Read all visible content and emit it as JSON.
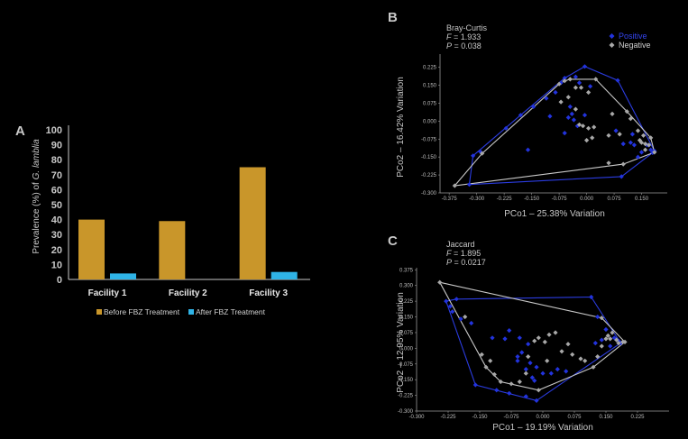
{
  "colors": {
    "background": "#000000",
    "before": "#c9962a",
    "after": "#2fb3e6",
    "positive": "#2233dd",
    "negative": "#a8a8a8",
    "text": "#c8c8c8"
  },
  "panels": {
    "a": {
      "letter": "A"
    },
    "b": {
      "letter": "B",
      "metric": "Bray-Curtis",
      "f_label": "F",
      "f_value": " = 1.933",
      "p_label": "P",
      "p_value": " = 0.038"
    },
    "c": {
      "letter": "C",
      "metric": "Jaccard",
      "f_label": "F",
      "f_value": " = 1.895",
      "p_label": "P",
      "p_value": " = 0.0217"
    }
  },
  "chart_data": [
    {
      "type": "bar",
      "id": "A",
      "categories": [
        "Facility 1",
        "Facility 2",
        "Facility 3"
      ],
      "series": [
        {
          "name": "Before FBZ Treatment",
          "values": [
            40,
            39,
            75
          ]
        },
        {
          "name": "After FBZ Treatment",
          "values": [
            4,
            0,
            5
          ]
        }
      ],
      "ylabel_prefix": "Prevalence (%) of ",
      "ylabel_italic": "G. lamblia",
      "ylim": [
        0,
        100
      ],
      "yticks": [
        0,
        10,
        20,
        30,
        40,
        50,
        60,
        70,
        80,
        90,
        100
      ],
      "legend_position": "bottom"
    },
    {
      "type": "scatter",
      "id": "B",
      "title": "Bray-Curtis",
      "xlabel": "PCo1 – 25.38% Variation",
      "ylabel": "PCo2 – 16.42% Variation",
      "xlim": [
        -0.4,
        0.22
      ],
      "ylim": [
        -0.3,
        0.28
      ],
      "xticks": [
        "-0.375",
        "-0.300",
        "-0.225",
        "-0.150",
        "-0.075",
        "0.000",
        "0.075",
        "0.150"
      ],
      "yticks": [
        "-0.300",
        "-0.225",
        "-0.150",
        "-0.075",
        "0.000",
        "0.075",
        "0.150",
        "0.225"
      ],
      "legend_position": "top-right",
      "series": [
        {
          "name": "Positive",
          "points": [
            [
              -0.31,
              -0.145
            ],
            [
              -0.29,
              -0.128
            ],
            [
              -0.22,
              -0.03
            ],
            [
              -0.18,
              0.025
            ],
            [
              -0.145,
              0.06
            ],
            [
              -0.11,
              0.095
            ],
            [
              -0.085,
              0.12
            ],
            [
              -0.07,
              0.16
            ],
            [
              -0.06,
              0.18
            ],
            [
              -0.03,
              0.185
            ],
            [
              -0.02,
              0.16
            ],
            [
              -0.005,
              0.228
            ],
            [
              0.01,
              0.145
            ],
            [
              -0.045,
              0.06
            ],
            [
              -0.04,
              0.03
            ],
            [
              -0.035,
              0.005
            ],
            [
              -0.025,
              -0.02
            ],
            [
              -0.05,
              0.015
            ],
            [
              -0.1,
              0.02
            ],
            [
              -0.06,
              -0.05
            ],
            [
              -0.16,
              -0.12
            ],
            [
              0.08,
              -0.04
            ],
            [
              0.085,
              0.17
            ],
            [
              0.1,
              -0.095
            ],
            [
              0.12,
              -0.09
            ],
            [
              0.125,
              -0.055
            ],
            [
              0.13,
              -0.1
            ],
            [
              0.14,
              -0.15
            ],
            [
              0.15,
              -0.13
            ],
            [
              0.165,
              -0.1
            ],
            [
              0.175,
              -0.12
            ],
            [
              0.18,
              -0.132
            ],
            [
              0.185,
              -0.125
            ],
            [
              0.095,
              -0.232
            ],
            [
              -0.32,
              -0.265
            ],
            [
              -0.005,
              0.025
            ]
          ]
        },
        {
          "name": "Negative",
          "points": [
            [
              -0.36,
              -0.27
            ],
            [
              -0.285,
              -0.135
            ],
            [
              -0.075,
              0.155
            ],
            [
              -0.06,
              0.168
            ],
            [
              -0.045,
              0.175
            ],
            [
              -0.03,
              0.14
            ],
            [
              -0.015,
              0.14
            ],
            [
              0.005,
              0.12
            ],
            [
              0.025,
              0.175
            ],
            [
              -0.07,
              0.08
            ],
            [
              -0.05,
              0.1
            ],
            [
              -0.03,
              0.05
            ],
            [
              -0.02,
              -0.015
            ],
            [
              -0.01,
              -0.02
            ],
            [
              0.005,
              -0.03
            ],
            [
              0.02,
              -0.025
            ],
            [
              0.06,
              -0.06
            ],
            [
              0.07,
              0.03
            ],
            [
              0.09,
              -0.055
            ],
            [
              0.11,
              0.04
            ],
            [
              0.12,
              0.01
            ],
            [
              0.14,
              -0.04
            ],
            [
              0.145,
              -0.08
            ],
            [
              0.15,
              -0.09
            ],
            [
              0.155,
              -0.06
            ],
            [
              0.16,
              -0.095
            ],
            [
              0.17,
              -0.1
            ],
            [
              0.175,
              -0.07
            ],
            [
              0.16,
              -0.12
            ],
            [
              0.185,
              -0.13
            ],
            [
              0.1,
              -0.18
            ],
            [
              0.06,
              -0.175
            ],
            [
              0.015,
              -0.07
            ],
            [
              0.0,
              -0.08
            ]
          ]
        }
      ]
    },
    {
      "type": "scatter",
      "id": "C",
      "title": "Jaccard",
      "xlabel": "PCo1 – 19.19% Variation",
      "ylabel": "PCo2 – 12.95% Variation",
      "xlim": [
        -0.3,
        0.3
      ],
      "ylim": [
        -0.3,
        0.385
      ],
      "xticks": [
        "-0.300",
        "-0.225",
        "-0.150",
        "-0.075",
        "0.000",
        "0.075",
        "0.150",
        "0.225"
      ],
      "yticks": [
        "-0.300",
        "-0.225",
        "-0.150",
        "-0.075",
        "0.000",
        "0.075",
        "0.150",
        "0.225",
        "0.300",
        "0.375"
      ],
      "series": [
        {
          "name": "Positive",
          "points": [
            [
              -0.23,
              0.225
            ],
            [
              -0.22,
              0.2
            ],
            [
              -0.205,
              0.235
            ],
            [
              -0.215,
              0.175
            ],
            [
              -0.195,
              0.14
            ],
            [
              -0.17,
              0.12
            ],
            [
              -0.12,
              0.05
            ],
            [
              -0.08,
              0.085
            ],
            [
              -0.055,
              0.05
            ],
            [
              -0.035,
              0.02
            ],
            [
              -0.05,
              -0.02
            ],
            [
              -0.06,
              -0.06
            ],
            [
              -0.04,
              -0.1
            ],
            [
              -0.03,
              -0.07
            ],
            [
              -0.025,
              -0.14
            ],
            [
              -0.015,
              -0.09
            ],
            [
              0.0,
              -0.12
            ],
            [
              0.02,
              -0.12
            ],
            [
              0.035,
              -0.1
            ],
            [
              0.055,
              -0.11
            ],
            [
              -0.02,
              -0.155
            ],
            [
              -0.04,
              -0.23
            ],
            [
              -0.015,
              -0.25
            ],
            [
              -0.16,
              -0.175
            ],
            [
              -0.11,
              -0.2
            ],
            [
              -0.08,
              -0.215
            ],
            [
              0.115,
              0.245
            ],
            [
              0.13,
              0.15
            ],
            [
              0.15,
              0.09
            ],
            [
              0.17,
              0.05
            ],
            [
              0.18,
              0.035
            ],
            [
              0.185,
              0.025
            ],
            [
              0.16,
              0.01
            ],
            [
              0.14,
              0.04
            ],
            [
              0.125,
              0.025
            ],
            [
              -0.09,
              0.045
            ],
            [
              -0.06,
              -0.04
            ]
          ]
        },
        {
          "name": "Negative",
          "points": [
            [
              -0.245,
              0.315
            ],
            [
              -0.185,
              0.15
            ],
            [
              -0.145,
              -0.03
            ],
            [
              -0.125,
              -0.06
            ],
            [
              -0.135,
              -0.09
            ],
            [
              -0.115,
              -0.125
            ],
            [
              -0.1,
              -0.16
            ],
            [
              -0.075,
              -0.17
            ],
            [
              -0.055,
              -0.16
            ],
            [
              -0.04,
              -0.12
            ],
            [
              -0.035,
              -0.04
            ],
            [
              -0.02,
              0.035
            ],
            [
              -0.01,
              0.05
            ],
            [
              0.005,
              0.03
            ],
            [
              0.015,
              0.065
            ],
            [
              0.03,
              0.075
            ],
            [
              0.045,
              -0.015
            ],
            [
              0.07,
              -0.03
            ],
            [
              0.09,
              -0.05
            ],
            [
              0.12,
              -0.09
            ],
            [
              0.13,
              -0.04
            ],
            [
              0.14,
              0.01
            ],
            [
              0.15,
              0.045
            ],
            [
              0.155,
              0.06
            ],
            [
              0.165,
              0.075
            ],
            [
              0.16,
              0.045
            ],
            [
              0.175,
              0.04
            ],
            [
              0.18,
              0.025
            ],
            [
              0.19,
              0.03
            ],
            [
              0.195,
              0.03
            ],
            [
              0.14,
              0.145
            ],
            [
              0.1,
              -0.06
            ],
            [
              0.06,
              0.02
            ],
            [
              0.01,
              -0.06
            ],
            [
              -0.01,
              -0.2
            ]
          ]
        }
      ]
    }
  ]
}
